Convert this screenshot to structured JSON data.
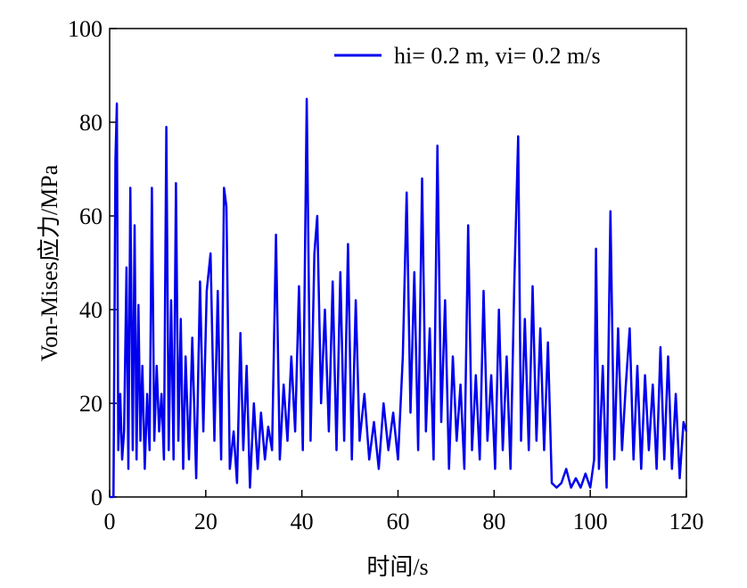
{
  "chart_data": {
    "type": "line",
    "xlabel": "时间/s",
    "ylabel": "Von-Mises应力/MPa",
    "xlim": [
      0,
      120
    ],
    "xticks": [
      0,
      20,
      40,
      60,
      80,
      100,
      120
    ],
    "ylim": [
      0,
      100
    ],
    "yticks": [
      0,
      20,
      40,
      60,
      80,
      100
    ],
    "legend": "upper right",
    "grid": false,
    "x": [
      0,
      0.8,
      1.2,
      1.5,
      1.8,
      2.2,
      2.6,
      3,
      3.5,
      3.9,
      4.3,
      4.8,
      5.2,
      5.6,
      6,
      6.4,
      6.8,
      7.3,
      7.8,
      8.3,
      8.8,
      9.3,
      9.8,
      10.3,
      10.8,
      11.3,
      11.8,
      12.3,
      12.8,
      13.3,
      13.8,
      14.3,
      14.8,
      15.3,
      15.8,
      16.5,
      17.2,
      18,
      18.8,
      19.5,
      20.2,
      21,
      21.8,
      22.5,
      23.2,
      23.8,
      24.3,
      25,
      25.8,
      26.5,
      27.2,
      27.8,
      28.5,
      29.2,
      30,
      30.8,
      31.5,
      32.3,
      33,
      33.8,
      34.6,
      35.4,
      36.2,
      37,
      37.8,
      38.6,
      39.4,
      40.2,
      41,
      41.8,
      42.6,
      43.2,
      44,
      44.8,
      45.6,
      46.4,
      47.2,
      48,
      48.8,
      49.6,
      50.4,
      51.2,
      52,
      53,
      54,
      55,
      56,
      57,
      58,
      59,
      60,
      61,
      61.8,
      62.6,
      63.4,
      64.2,
      65,
      65.8,
      66.6,
      67.4,
      68.2,
      69,
      69.8,
      70.6,
      71.4,
      72.2,
      73,
      73.8,
      74.6,
      75.4,
      76.2,
      77,
      77.8,
      78.6,
      79.4,
      80.2,
      81,
      81.8,
      82.6,
      83.4,
      84.2,
      85,
      85.6,
      86.4,
      87.2,
      88,
      88.8,
      89.6,
      90.4,
      91.2,
      92,
      93,
      94,
      95,
      96,
      97,
      98,
      99,
      100,
      100.8,
      101.2,
      101.8,
      102.6,
      103.4,
      104.2,
      105,
      105.8,
      106.6,
      107.4,
      108.2,
      109,
      109.8,
      110.6,
      111.4,
      112.2,
      113,
      113.8,
      114.6,
      115.4,
      116.2,
      117,
      117.8,
      118.6,
      119.4,
      120
    ],
    "series": [
      {
        "name": "hi= 0.2 m, vi= 0.2 m/s",
        "color": "#0000ee",
        "values": [
          0,
          0,
          72,
          84,
          10,
          22,
          8,
          14,
          49,
          6,
          66,
          10,
          58,
          8,
          41,
          12,
          28,
          6,
          22,
          10,
          66,
          12,
          28,
          14,
          22,
          8,
          79,
          10,
          42,
          8,
          67,
          12,
          38,
          6,
          30,
          8,
          34,
          4,
          46,
          14,
          44,
          52,
          12,
          44,
          8,
          66,
          62,
          6,
          14,
          3,
          35,
          10,
          28,
          2,
          20,
          6,
          18,
          8,
          15,
          10,
          56,
          8,
          24,
          12,
          30,
          14,
          45,
          10,
          85,
          12,
          52,
          60,
          20,
          40,
          14,
          46,
          10,
          48,
          12,
          54,
          8,
          42,
          12,
          22,
          8,
          16,
          6,
          20,
          10,
          18,
          8,
          30,
          65,
          18,
          48,
          10,
          68,
          14,
          36,
          8,
          75,
          16,
          42,
          6,
          30,
          12,
          24,
          6,
          58,
          10,
          26,
          8,
          44,
          12,
          26,
          6,
          40,
          10,
          30,
          6,
          46,
          77,
          12,
          38,
          10,
          45,
          12,
          36,
          10,
          33,
          3,
          2,
          3,
          6,
          2,
          4,
          2,
          5,
          2,
          8,
          53,
          6,
          28,
          2,
          61,
          8,
          36,
          10,
          24,
          36,
          8,
          28,
          6,
          26,
          10,
          24,
          6,
          32,
          8,
          30,
          6,
          22,
          4,
          16,
          14
        ]
      }
    ]
  }
}
